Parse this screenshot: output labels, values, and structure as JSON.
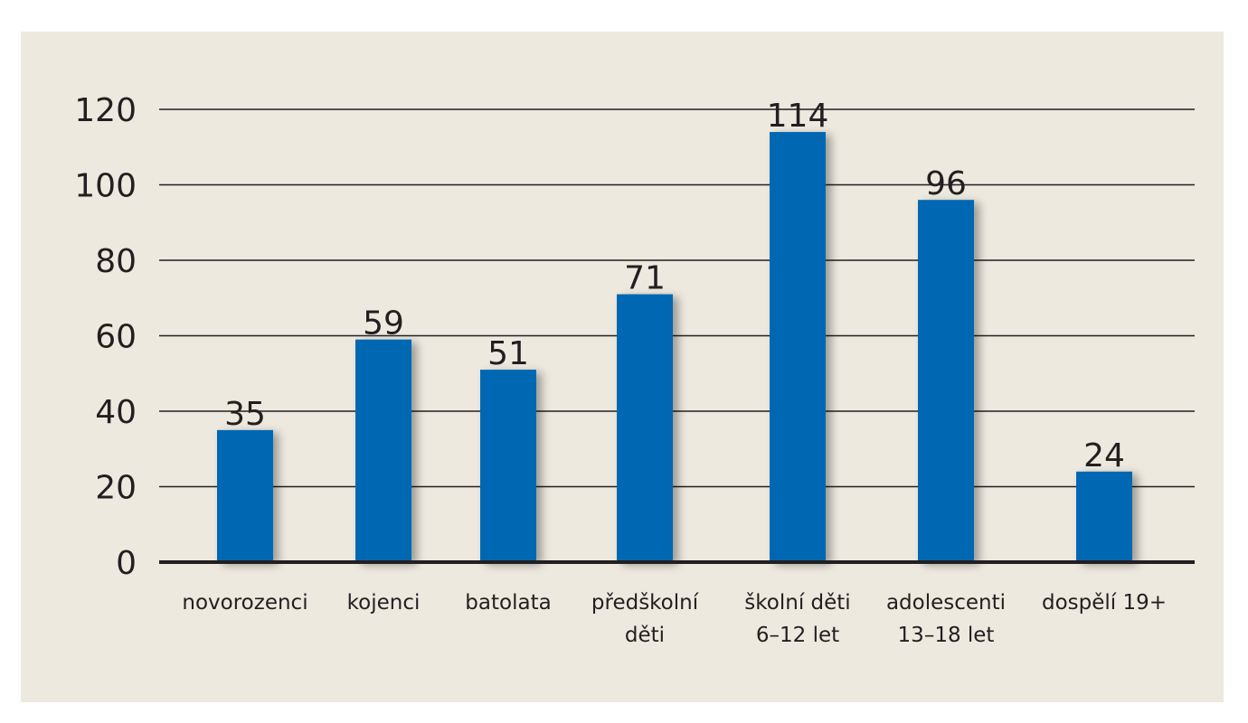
{
  "chart_data": {
    "type": "bar",
    "categories": [
      [
        "novorozenci"
      ],
      [
        "kojenci"
      ],
      [
        "batolata"
      ],
      [
        "předškolní",
        "děti"
      ],
      [
        "školní děti",
        "6–12 let"
      ],
      [
        "adolescenti",
        "13–18 let"
      ],
      [
        "dospělí 19+"
      ]
    ],
    "values": [
      35,
      59,
      51,
      71,
      114,
      96,
      24
    ],
    "ylim": [
      0,
      120
    ],
    "yticks": [
      0,
      20,
      40,
      60,
      80,
      100,
      120
    ],
    "grid": true,
    "bar_color": "#0068b3",
    "background_color": "#ede9df"
  }
}
